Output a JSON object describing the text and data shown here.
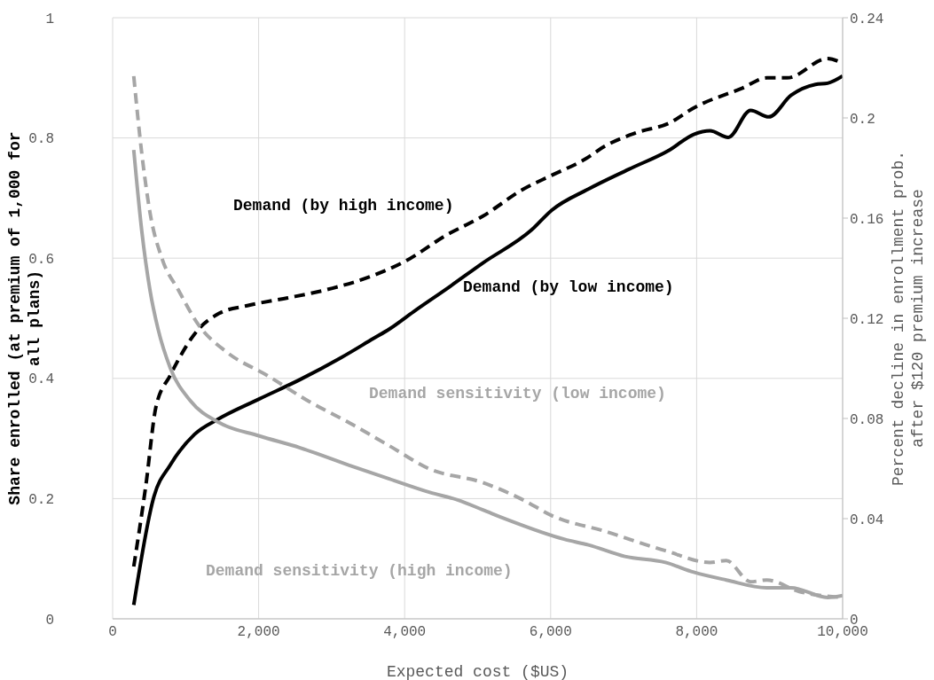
{
  "chart_data": {
    "type": "line",
    "xlabel": "Expected cost ($US)",
    "ylabel": "Share enrolled (at premium of 1,000 for all plans)",
    "y2label": "Percent decline in enrollment prob. after $120 premium increase",
    "xlim": [
      0,
      10000
    ],
    "xticks": [
      0,
      {
        "value": 2000,
        "label": "2,000"
      },
      {
        "value": 4000,
        "label": "4,000"
      },
      {
        "value": 6000,
        "label": "6,000"
      },
      {
        "value": 8000,
        "label": "8,000"
      },
      {
        "value": 10000,
        "label": "10,000"
      }
    ],
    "ylim": [
      0,
      1
    ],
    "yticks": [
      0,
      0.2,
      0.4,
      0.6,
      0.8,
      1
    ],
    "y2lim": [
      0,
      0.24
    ],
    "y2ticks": [
      0,
      0.04,
      0.08,
      0.12,
      0.16,
      0.2,
      0.24
    ],
    "grid": true,
    "legend": false,
    "series": [
      {
        "name": "Demand (by high income)",
        "color": "#000000",
        "line_style": "dashed",
        "x": [
          289,
          456,
          594,
          789,
          1178,
          1456,
          1844,
          2400,
          2733,
          3011,
          3567,
          4011,
          4567,
          5072,
          5628,
          6017,
          6461,
          6739,
          7183,
          7628,
          7961,
          8628,
          8961,
          9239,
          9794,
          10000
        ],
        "values": [
          0.087,
          0.223,
          0.353,
          0.405,
          0.482,
          0.508,
          0.521,
          0.534,
          0.542,
          0.55,
          0.571,
          0.595,
          0.638,
          0.67,
          0.715,
          0.738,
          0.764,
          0.786,
          0.809,
          0.825,
          0.85,
          0.883,
          0.9,
          0.9,
          0.932,
          0.924
        ]
      },
      {
        "name": "Demand (by low income)",
        "color": "#000000",
        "line_style": "solid",
        "x": [
          289,
          567,
          789,
          1122,
          1456,
          2011,
          2567,
          3122,
          3567,
          3789,
          4122,
          4622,
          5072,
          5739,
          6017,
          6517,
          7072,
          7628,
          7961,
          8183,
          8433,
          8739,
          8989,
          9294,
          9628,
          9794,
          10000
        ],
        "values": [
          0.023,
          0.204,
          0.256,
          0.307,
          0.333,
          0.366,
          0.398,
          0.434,
          0.466,
          0.482,
          0.511,
          0.553,
          0.592,
          0.647,
          0.68,
          0.715,
          0.748,
          0.78,
          0.806,
          0.812,
          0.801,
          0.846,
          0.835,
          0.871,
          0.889,
          0.891,
          0.903
        ]
      },
      {
        "name": "Demand sensitivity (low income)",
        "color": "#a6a6a6",
        "line_style": "dashed",
        "axis": "y2",
        "x": [
          289,
          400,
          511,
          678,
          900,
          1178,
          1567,
          2122,
          2678,
          3233,
          3789,
          4345,
          5072,
          5628,
          6017,
          6739,
          7572,
          8183,
          8406,
          8739,
          8961,
          9406,
          10000
        ],
        "values": [
          0.2167,
          0.1856,
          0.1623,
          0.1437,
          0.1313,
          0.1173,
          0.1064,
          0.0971,
          0.087,
          0.0784,
          0.0691,
          0.0598,
          0.0544,
          0.0474,
          0.0412,
          0.035,
          0.0272,
          0.0225,
          0.0233,
          0.0148,
          0.0155,
          0.0109,
          0.0085
        ]
      },
      {
        "name": "Demand sensitivity (high income)",
        "color": "#a6a6a6",
        "line_style": "solid",
        "axis": "y2",
        "x": [
          289,
          400,
          511,
          622,
          789,
          1067,
          1456,
          2011,
          2567,
          3233,
          3789,
          4345,
          4734,
          5072,
          5406,
          6183,
          6517,
          7017,
          7572,
          7961,
          8406,
          8961,
          9294,
          9794,
          10000
        ],
        "values": [
          0.1872,
          0.1546,
          0.1313,
          0.1157,
          0.1002,
          0.087,
          0.0784,
          0.073,
          0.0683,
          0.0614,
          0.0559,
          0.0505,
          0.0474,
          0.0435,
          0.0396,
          0.0318,
          0.0295,
          0.0249,
          0.0225,
          0.0186,
          0.0155,
          0.0124,
          0.0124,
          0.0085,
          0.0093
        ]
      }
    ]
  }
}
